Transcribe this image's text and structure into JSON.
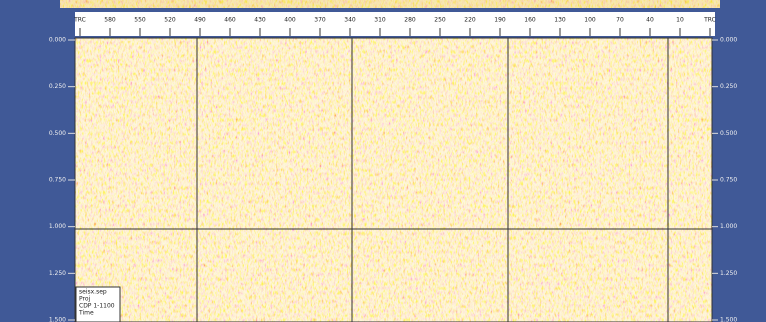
{
  "top_axis": {
    "labels": [
      "TRC",
      "580",
      "550",
      "520",
      "490",
      "460",
      "430",
      "400",
      "370",
      "340",
      "310",
      "280",
      "250",
      "220",
      "190",
      "160",
      "130",
      "100",
      "70",
      "40",
      "10",
      "TRC"
    ]
  },
  "left_axis": {
    "labels": [
      "0.000",
      "0.250",
      "0.500",
      "0.750",
      "1.000",
      "1.250",
      "1.500"
    ]
  },
  "right_axis": {
    "labels": [
      "0.000",
      "0.250",
      "0.500",
      "0.750",
      "1.000",
      "1.250",
      "1.500"
    ]
  },
  "info_box": {
    "lines": [
      "seisx.sep",
      "Proj",
      "CDP 1-1100",
      "Time"
    ]
  }
}
